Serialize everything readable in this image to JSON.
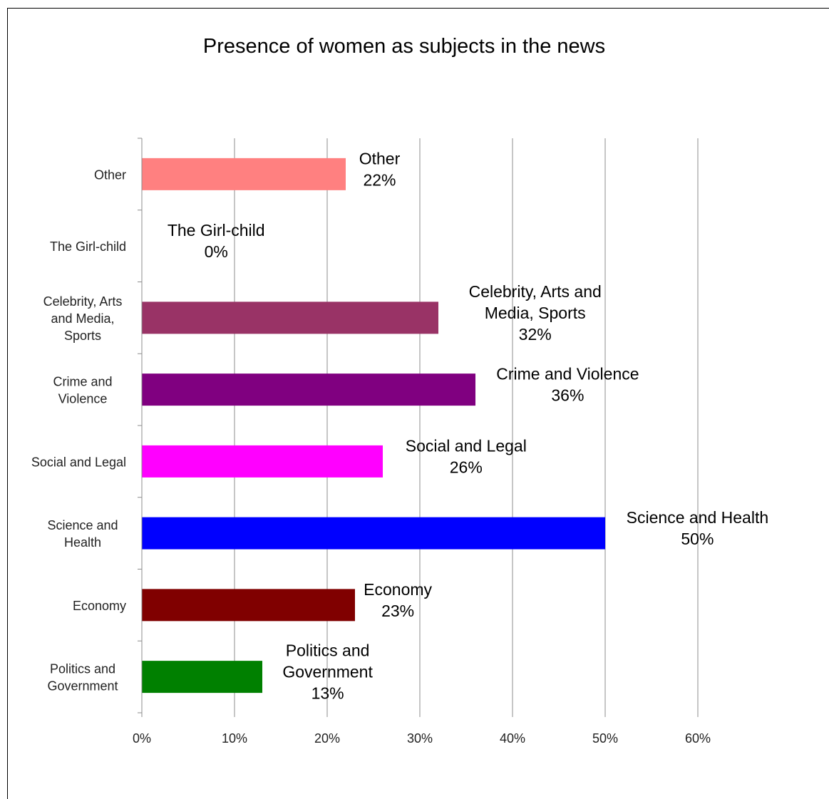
{
  "chart_data": {
    "type": "bar",
    "orientation": "horizontal",
    "title": "Presence of women as subjects in the news",
    "xlabel": "",
    "ylabel": "",
    "xlim": [
      0,
      60
    ],
    "x_ticks": [
      "0%",
      "10%",
      "20%",
      "30%",
      "40%",
      "50%",
      "60%"
    ],
    "grid": "vertical",
    "legend": "none",
    "categories": [
      {
        "label": [
          "Other"
        ],
        "value": 22,
        "color": "#FF8080",
        "data_label": [
          "Other",
          "22%"
        ]
      },
      {
        "label": [
          "The Girl-child"
        ],
        "value": 0,
        "color": "#C0C0C0",
        "data_label": [
          "The Girl-child",
          "0%"
        ]
      },
      {
        "label": [
          "Celebrity, Arts",
          "and Media,",
          "Sports"
        ],
        "value": 32,
        "color": "#993366",
        "data_label": [
          "Celebrity, Arts and",
          "Media, Sports",
          "32%"
        ]
      },
      {
        "label": [
          "Crime and",
          "Violence"
        ],
        "value": 36,
        "color": "#800080",
        "data_label": [
          "Crime and Violence",
          "36%"
        ]
      },
      {
        "label": [
          "Social and Legal"
        ],
        "value": 26,
        "color": "#FF00FF",
        "data_label": [
          "Social and Legal",
          "26%"
        ]
      },
      {
        "label": [
          "Science and",
          "Health"
        ],
        "value": 50,
        "color": "#0000FF",
        "data_label": [
          "Science and Health",
          "50%"
        ]
      },
      {
        "label": [
          "Economy"
        ],
        "value": 23,
        "color": "#800000",
        "data_label": [
          "Economy",
          "23%"
        ]
      },
      {
        "label": [
          "Politics and",
          "Government"
        ],
        "value": 13,
        "color": "#008000",
        "data_label": [
          "Politics and",
          "Government",
          "13%"
        ]
      }
    ]
  }
}
